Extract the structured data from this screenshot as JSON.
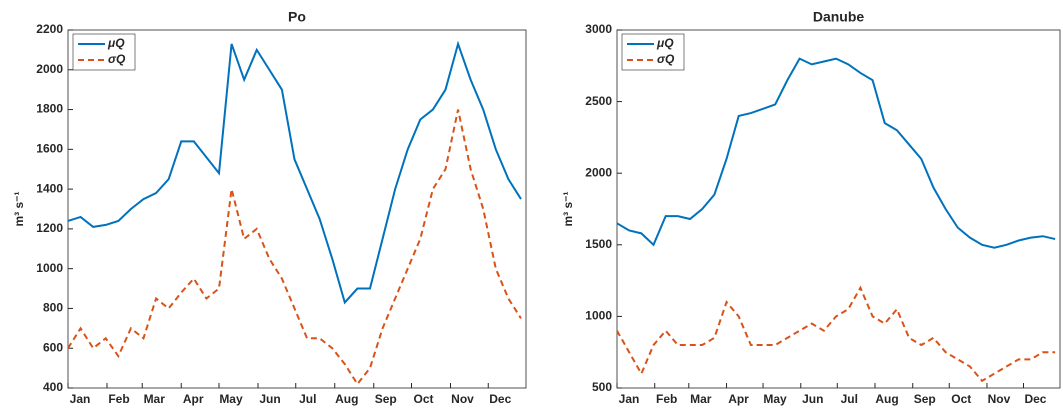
{
  "chart_data": [
    {
      "type": "line",
      "title": "Po",
      "ylabel": "m³ s⁻¹",
      "grid": false,
      "legend": "upper left",
      "xlim": [
        1,
        365
      ],
      "xticks": [
        {
          "value": 1,
          "label": "Jan"
        },
        {
          "value": 32,
          "label": "Feb"
        },
        {
          "value": 60,
          "label": "Mar"
        },
        {
          "value": 91,
          "label": "Apr"
        },
        {
          "value": 121,
          "label": "May"
        },
        {
          "value": 152,
          "label": "Jun"
        },
        {
          "value": 182,
          "label": "Jul"
        },
        {
          "value": 213,
          "label": "Aug"
        },
        {
          "value": 244,
          "label": "Sep"
        },
        {
          "value": 274,
          "label": "Oct"
        },
        {
          "value": 305,
          "label": "Nov"
        },
        {
          "value": 335,
          "label": "Dec"
        }
      ],
      "ylim": [
        400,
        2200
      ],
      "yticks": [
        400,
        600,
        800,
        1000,
        1200,
        1400,
        1600,
        1800,
        2000,
        2200
      ],
      "x": [
        1,
        11,
        21,
        31,
        41,
        51,
        61,
        71,
        81,
        91,
        101,
        111,
        121,
        131,
        141,
        151,
        161,
        171,
        181,
        191,
        201,
        211,
        221,
        231,
        241,
        251,
        261,
        271,
        281,
        291,
        301,
        311,
        321,
        331,
        341,
        351,
        361
      ],
      "series": [
        {
          "name": "μQ",
          "color": "#0072bd",
          "dashed": false,
          "values": [
            1240,
            1260,
            1210,
            1220,
            1240,
            1300,
            1350,
            1380,
            1450,
            1640,
            1640,
            1560,
            1480,
            2130,
            1950,
            2100,
            2000,
            1900,
            1550,
            1400,
            1250,
            1050,
            830,
            900,
            900,
            1150,
            1400,
            1600,
            1750,
            1800,
            1900,
            2130,
            1950,
            1800,
            1600,
            1450,
            1350
          ]
        },
        {
          "name": "σQ",
          "color": "#d95319",
          "dashed": true,
          "values": [
            600,
            700,
            600,
            650,
            560,
            700,
            650,
            850,
            800,
            880,
            950,
            850,
            900,
            1400,
            1150,
            1200,
            1050,
            950,
            800,
            650,
            650,
            600,
            520,
            420,
            500,
            700,
            850,
            1000,
            1150,
            1400,
            1500,
            1800,
            1500,
            1300,
            1000,
            850,
            750
          ]
        }
      ]
    },
    {
      "type": "line",
      "title": "Danube",
      "ylabel": "m³ s⁻¹",
      "grid": false,
      "legend": "upper left",
      "xlim": [
        1,
        365
      ],
      "xticks": [
        {
          "value": 1,
          "label": "Jan"
        },
        {
          "value": 32,
          "label": "Feb"
        },
        {
          "value": 60,
          "label": "Mar"
        },
        {
          "value": 91,
          "label": "Apr"
        },
        {
          "value": 121,
          "label": "May"
        },
        {
          "value": 152,
          "label": "Jun"
        },
        {
          "value": 182,
          "label": "Jul"
        },
        {
          "value": 213,
          "label": "Aug"
        },
        {
          "value": 244,
          "label": "Sep"
        },
        {
          "value": 274,
          "label": "Oct"
        },
        {
          "value": 305,
          "label": "Nov"
        },
        {
          "value": 335,
          "label": "Dec"
        }
      ],
      "ylim": [
        500,
        3000
      ],
      "yticks": [
        500,
        1000,
        1500,
        2000,
        2500,
        3000
      ],
      "x": [
        1,
        11,
        21,
        31,
        41,
        51,
        61,
        71,
        81,
        91,
        101,
        111,
        121,
        131,
        141,
        151,
        161,
        171,
        181,
        191,
        201,
        211,
        221,
        231,
        241,
        251,
        261,
        271,
        281,
        291,
        301,
        311,
        321,
        331,
        341,
        351,
        361
      ],
      "series": [
        {
          "name": "μQ",
          "color": "#0072bd",
          "dashed": false,
          "values": [
            1650,
            1600,
            1580,
            1500,
            1700,
            1700,
            1680,
            1750,
            1850,
            2100,
            2400,
            2420,
            2450,
            2480,
            2650,
            2800,
            2760,
            2780,
            2800,
            2760,
            2700,
            2650,
            2350,
            2300,
            2200,
            2100,
            1900,
            1750,
            1620,
            1550,
            1500,
            1480,
            1500,
            1530,
            1550,
            1560,
            1540
          ]
        },
        {
          "name": "σQ",
          "color": "#d95319",
          "dashed": true,
          "values": [
            900,
            750,
            600,
            800,
            900,
            800,
            800,
            800,
            850,
            1100,
            1000,
            800,
            800,
            800,
            850,
            900,
            950,
            900,
            1000,
            1050,
            1200,
            1000,
            950,
            1050,
            850,
            800,
            850,
            750,
            700,
            650,
            550,
            600,
            650,
            700,
            700,
            750,
            750
          ]
        }
      ]
    }
  ]
}
